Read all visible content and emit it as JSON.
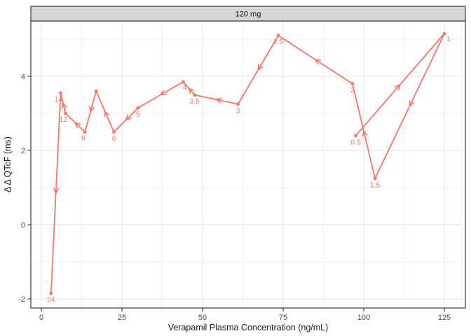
{
  "chart_data": {
    "type": "line",
    "plot_kind": "concentration-effect-hysteresis-loop",
    "facet_label": "120 mg",
    "xlabel": "Verapamil Plasma Concentration (ng/mL)",
    "ylabel": "Δ Δ QTcF (ms)",
    "xlim": [
      -3.3,
      131.5
    ],
    "ylim": [
      -2.26,
      5.49
    ],
    "x_ticks": [
      0,
      25,
      50,
      75,
      100,
      125
    ],
    "y_ticks": [
      -2,
      0,
      2,
      4
    ],
    "x_minor_gridlines": [
      12.5,
      37.5,
      62.5,
      87.5,
      112.5
    ],
    "y_minor_gridlines": [
      -1,
      1,
      3,
      5
    ],
    "grid": "major+minor",
    "legend": "none",
    "direction_arrows": "open chevron at midpoint of each segment pointing in time order",
    "series": [
      {
        "name": "120 mg",
        "color": "#F8766D",
        "marker": "point",
        "points": [
          {
            "time_label": "0.5",
            "x": 97.5,
            "y": 2.4
          },
          {
            "time_label": "1",
            "x": 125,
            "y": 5.15
          },
          {
            "time_label": "1.5",
            "x": 103.5,
            "y": 1.25
          },
          {
            "time_label": "2",
            "x": 96.5,
            "y": 3.8
          },
          {
            "time_label": "2.5",
            "x": 73.5,
            "y": 5.1
          },
          {
            "time_label": "3",
            "x": 61,
            "y": 3.25
          },
          {
            "time_label": "3.5",
            "x": 47.5,
            "y": 3.5
          },
          {
            "time_label": "4",
            "x": 44,
            "y": 3.85
          },
          {
            "time_label": "5",
            "x": 30,
            "y": 3.15
          },
          {
            "time_label": "6",
            "x": 22.5,
            "y": 2.5
          },
          {
            "time_label": "",
            "x": 17,
            "y": 3.6
          },
          {
            "time_label": "8",
            "x": 13.5,
            "y": 2.5
          },
          {
            "time_label": "12",
            "x": 7.5,
            "y": 3.0
          },
          {
            "time_label": "14",
            "x": 6,
            "y": 3.55
          },
          {
            "time_label": "24",
            "x": 3,
            "y": -1.85
          }
        ]
      }
    ],
    "colors": {
      "series": "#F8766D",
      "strip_fill": "#D6D6D6",
      "strip_text": "#1a1a1a",
      "panel_border": "#3a3a3a",
      "grid_major": "#e4e4e4",
      "grid_minor": "#f1f1f1",
      "tick_mark": "#333333",
      "tick_label": "#4d4d4d",
      "axis_title": "#1a1a1a"
    }
  }
}
